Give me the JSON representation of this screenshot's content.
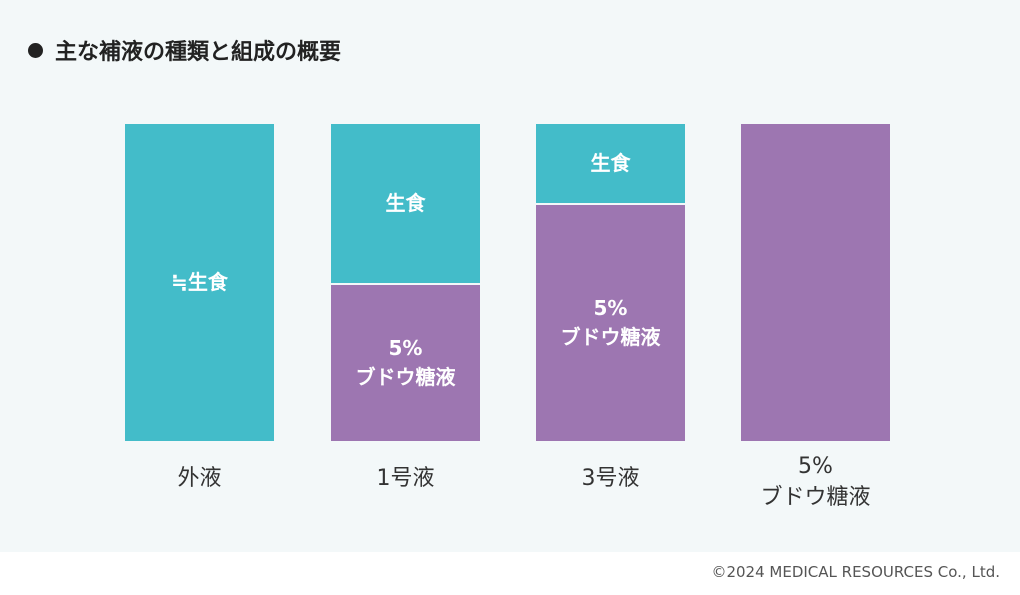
{
  "title": "主な補液の種類と組成の概要",
  "colors": {
    "saline": "#43bcc9",
    "glucose": "#9d76b1"
  },
  "columns": [
    {
      "caption": [
        "外液"
      ],
      "segments": [
        {
          "type": "saline",
          "share": 1.0,
          "label": [
            "≒生食"
          ]
        }
      ]
    },
    {
      "caption": [
        "1号液"
      ],
      "segments": [
        {
          "type": "saline",
          "share": 0.5,
          "label": [
            "生食"
          ]
        },
        {
          "type": "glucose",
          "share": 0.5,
          "label": [
            "5%",
            "ブドウ糖液"
          ]
        }
      ]
    },
    {
      "caption": [
        "3号液"
      ],
      "segments": [
        {
          "type": "saline",
          "share": 0.25,
          "label": [
            "生食"
          ]
        },
        {
          "type": "glucose",
          "share": 0.75,
          "label": [
            "5%",
            "ブドウ糖液"
          ]
        }
      ]
    },
    {
      "caption": [
        "5%",
        "ブドウ糖液"
      ],
      "segments": [
        {
          "type": "glucose",
          "share": 1.0,
          "label": []
        }
      ]
    }
  ],
  "copyright": "©2024 MEDICAL RESOURCES Co., Ltd."
}
